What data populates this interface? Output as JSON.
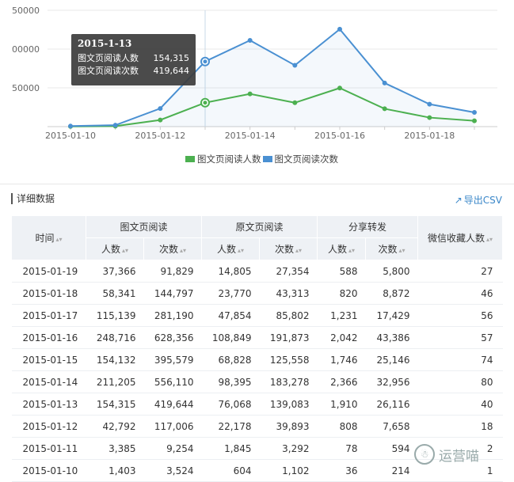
{
  "chart_data": {
    "type": "line",
    "x": [
      "2015-01-10",
      "2015-01-11",
      "2015-01-12",
      "2015-01-13",
      "2015-01-14",
      "2015-01-15",
      "2015-01-16",
      "2015-01-17",
      "2015-01-18",
      "2015-01-19"
    ],
    "x_tick_labels": [
      "2015-01-10",
      "2015-01-12",
      "2015-01-14",
      "2015-01-16",
      "2015-01-18"
    ],
    "y_tick_labels": [
      "50000",
      "00000",
      "50000"
    ],
    "series": [
      {
        "name": "图文页阅读人数",
        "color": "#4cb050",
        "values": [
          1403,
          3385,
          42792,
          154315,
          211205,
          154132,
          248716,
          115139,
          58341,
          37366
        ]
      },
      {
        "name": "图文页阅读次数",
        "color": "#4a90d2",
        "values": [
          3524,
          9254,
          117006,
          419644,
          556110,
          395579,
          628356,
          281190,
          144797,
          91829
        ]
      }
    ],
    "ylim": [
      0,
      750000
    ],
    "grid": true,
    "legend_position": "bottom"
  },
  "tooltip": {
    "date": "2015-1-13",
    "rows": [
      {
        "label": "图文页阅读人数",
        "value": "154,315"
      },
      {
        "label": "图文页阅读次数",
        "value": "419,644"
      }
    ]
  },
  "section": {
    "title": "详细数据",
    "export_label": "导出CSV"
  },
  "table": {
    "col_time": "时间",
    "group1": "图文页阅读",
    "group2": "原文页阅读",
    "group3": "分享转发",
    "col_fav": "微信收藏人数",
    "sub_people": "人数",
    "sub_times": "次数",
    "rows": [
      {
        "date": "2015-01-19",
        "p1": "37,366",
        "t1": "91,829",
        "p2": "14,805",
        "t2": "27,354",
        "p3": "588",
        "t3": "5,800",
        "fav": "27"
      },
      {
        "date": "2015-01-18",
        "p1": "58,341",
        "t1": "144,797",
        "p2": "23,770",
        "t2": "43,313",
        "p3": "820",
        "t3": "8,872",
        "fav": "46"
      },
      {
        "date": "2015-01-17",
        "p1": "115,139",
        "t1": "281,190",
        "p2": "47,854",
        "t2": "85,802",
        "p3": "1,231",
        "t3": "17,429",
        "fav": "56"
      },
      {
        "date": "2015-01-16",
        "p1": "248,716",
        "t1": "628,356",
        "p2": "108,849",
        "t2": "191,873",
        "p3": "2,042",
        "t3": "43,386",
        "fav": "57"
      },
      {
        "date": "2015-01-15",
        "p1": "154,132",
        "t1": "395,579",
        "p2": "68,828",
        "t2": "125,558",
        "p3": "1,746",
        "t3": "25,146",
        "fav": "74"
      },
      {
        "date": "2015-01-14",
        "p1": "211,205",
        "t1": "556,110",
        "p2": "98,395",
        "t2": "183,278",
        "p3": "2,366",
        "t3": "32,956",
        "fav": "80"
      },
      {
        "date": "2015-01-13",
        "p1": "154,315",
        "t1": "419,644",
        "p2": "76,068",
        "t2": "139,083",
        "p3": "1,910",
        "t3": "26,116",
        "fav": "40"
      },
      {
        "date": "2015-01-12",
        "p1": "42,792",
        "t1": "117,006",
        "p2": "22,178",
        "t2": "39,893",
        "p3": "808",
        "t3": "7,658",
        "fav": "18"
      },
      {
        "date": "2015-01-11",
        "p1": "3,385",
        "t1": "9,254",
        "p2": "1,845",
        "t2": "3,292",
        "p3": "78",
        "t3": "594",
        "fav": "2"
      },
      {
        "date": "2015-01-10",
        "p1": "1,403",
        "t1": "3,524",
        "p2": "604",
        "t2": "1,102",
        "p3": "36",
        "t3": "214",
        "fav": "1"
      }
    ]
  },
  "watermark": {
    "text": "运营喵"
  }
}
